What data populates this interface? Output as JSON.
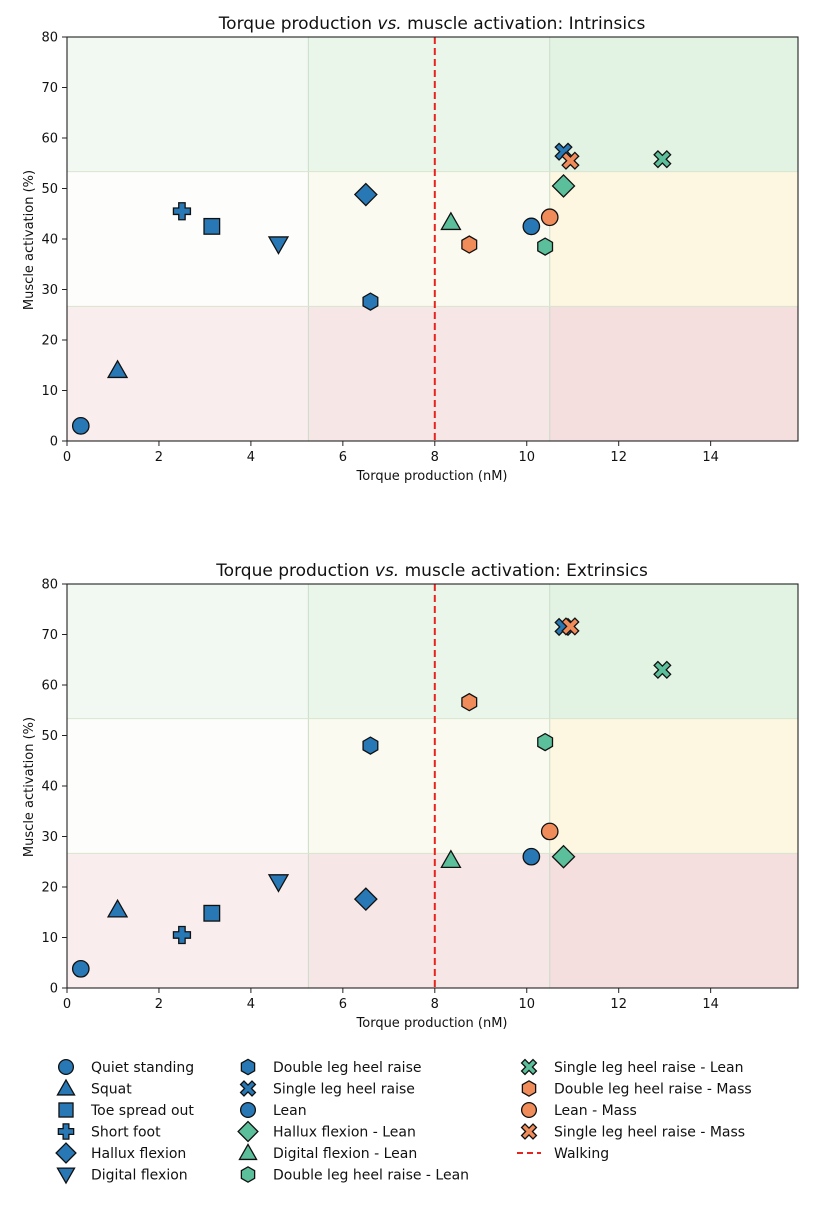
{
  "colors": {
    "blue": "#2878b5",
    "teal": "#5bbf9b",
    "orange": "#f08c5a",
    "walking": "#e8231e",
    "zone_red": "#f4dede",
    "zone_yellow": "#fdf6dc",
    "zone_green": "#e2f2e2",
    "zone_neutral": "#fbfbf4"
  },
  "legend": {
    "items": [
      {
        "label": "Quiet standing",
        "marker": "circle",
        "color": "blue"
      },
      {
        "label": "Squat",
        "marker": "triangle-up",
        "color": "blue"
      },
      {
        "label": "Toe spread out",
        "marker": "square",
        "color": "blue"
      },
      {
        "label": "Short foot",
        "marker": "plus",
        "color": "blue"
      },
      {
        "label": "Hallux flexion",
        "marker": "diamond",
        "color": "blue"
      },
      {
        "label": "Digital flexion",
        "marker": "triangle-down",
        "color": "blue"
      },
      {
        "label": "Double leg heel raise",
        "marker": "hexagon",
        "color": "blue"
      },
      {
        "label": "Single leg heel raise",
        "marker": "x",
        "color": "blue"
      },
      {
        "label": "Lean",
        "marker": "circle",
        "color": "blue"
      },
      {
        "label": "Hallux flexion  - Lean",
        "marker": "diamond",
        "color": "teal"
      },
      {
        "label": "Digital flexion  - Lean",
        "marker": "triangle-up",
        "color": "teal"
      },
      {
        "label": "Double leg heel raise  - Lean",
        "marker": "hexagon",
        "color": "teal"
      },
      {
        "label": "Single leg heel raise  - Lean",
        "marker": "x",
        "color": "teal"
      },
      {
        "label": "Double leg heel raise  - Mass",
        "marker": "hexagon",
        "color": "orange"
      },
      {
        "label": "Lean - Mass",
        "marker": "circle",
        "color": "orange"
      },
      {
        "label": "Single leg heel raise  - Mass",
        "marker": "x",
        "color": "orange"
      },
      {
        "label": "Walking",
        "marker": "dashed-line",
        "color": "walking"
      }
    ]
  },
  "chart_data": [
    {
      "type": "scatter",
      "title_prefix": "Torque production ",
      "title_italic": "vs.",
      "title_suffix": " muscle activation: Intrinsics",
      "xlabel": "Torque production (nM)",
      "ylabel": "Muscle activation (%)",
      "xlim": [
        0,
        15.9
      ],
      "ylim": [
        0,
        80
      ],
      "xticks": [
        0,
        2,
        4,
        6,
        8,
        10,
        12,
        14
      ],
      "yticks": [
        0,
        10,
        20,
        30,
        40,
        50,
        60,
        70,
        80
      ],
      "grid": false,
      "zones_x": [
        5.25,
        10.5
      ],
      "zones_y": [
        26.67,
        53.33
      ],
      "walking_x": 8,
      "points": [
        {
          "series": "Quiet standing",
          "x": 0.3,
          "y": 3
        },
        {
          "series": "Squat",
          "x": 1.1,
          "y": 14
        },
        {
          "series": "Toe spread out",
          "x": 3.15,
          "y": 42.5
        },
        {
          "series": "Short foot",
          "x": 2.5,
          "y": 45.5
        },
        {
          "series": "Hallux flexion",
          "x": 6.5,
          "y": 48.8
        },
        {
          "series": "Digital flexion",
          "x": 4.6,
          "y": 39
        },
        {
          "series": "Double leg heel raise",
          "x": 6.6,
          "y": 27.6
        },
        {
          "series": "Single leg heel raise",
          "x": 10.8,
          "y": 57.3
        },
        {
          "series": "Lean",
          "x": 10.1,
          "y": 42.5
        },
        {
          "series": "Hallux flexion  - Lean",
          "x": 10.8,
          "y": 50.5
        },
        {
          "series": "Digital flexion  - Lean",
          "x": 8.35,
          "y": 43.3
        },
        {
          "series": "Double leg heel raise  - Lean",
          "x": 10.4,
          "y": 38.5
        },
        {
          "series": "Single leg heel raise  - Lean",
          "x": 12.95,
          "y": 55.8
        },
        {
          "series": "Double leg heel raise  - Mass",
          "x": 8.75,
          "y": 38.9
        },
        {
          "series": "Lean - Mass",
          "x": 10.5,
          "y": 44.3
        },
        {
          "series": "Single leg heel raise  - Mass",
          "x": 10.95,
          "y": 55.5
        }
      ]
    },
    {
      "type": "scatter",
      "title_prefix": "Torque production ",
      "title_italic": "vs.",
      "title_suffix": " muscle activation: Extrinsics",
      "xlabel": "Torque production (nM)",
      "ylabel": "Muscle activation (%)",
      "xlim": [
        0,
        15.9
      ],
      "ylim": [
        0,
        80
      ],
      "xticks": [
        0,
        2,
        4,
        6,
        8,
        10,
        12,
        14
      ],
      "yticks": [
        0,
        10,
        20,
        30,
        40,
        50,
        60,
        70,
        80
      ],
      "grid": false,
      "zones_x": [
        5.25,
        10.5
      ],
      "zones_y": [
        26.67,
        53.33
      ],
      "walking_x": 8,
      "points": [
        {
          "series": "Quiet standing",
          "x": 0.3,
          "y": 3.8
        },
        {
          "series": "Squat",
          "x": 1.1,
          "y": 15.5
        },
        {
          "series": "Toe spread out",
          "x": 3.15,
          "y": 14.8
        },
        {
          "series": "Short foot",
          "x": 2.5,
          "y": 10.5
        },
        {
          "series": "Hallux flexion",
          "x": 6.5,
          "y": 17.6
        },
        {
          "series": "Digital flexion",
          "x": 4.6,
          "y": 21
        },
        {
          "series": "Double leg heel raise",
          "x": 6.6,
          "y": 48
        },
        {
          "series": "Single leg heel raise",
          "x": 10.8,
          "y": 71.5
        },
        {
          "series": "Lean",
          "x": 10.1,
          "y": 26
        },
        {
          "series": "Hallux flexion  - Lean",
          "x": 10.8,
          "y": 26
        },
        {
          "series": "Digital flexion  - Lean",
          "x": 8.35,
          "y": 25.3
        },
        {
          "series": "Double leg heel raise  - Lean",
          "x": 10.4,
          "y": 48.7
        },
        {
          "series": "Single leg heel raise  - Lean",
          "x": 12.95,
          "y": 63
        },
        {
          "series": "Double leg heel raise  - Mass",
          "x": 8.75,
          "y": 56.6
        },
        {
          "series": "Lean - Mass",
          "x": 10.5,
          "y": 31
        },
        {
          "series": "Single leg heel raise  - Mass",
          "x": 10.95,
          "y": 71.6
        }
      ]
    }
  ]
}
